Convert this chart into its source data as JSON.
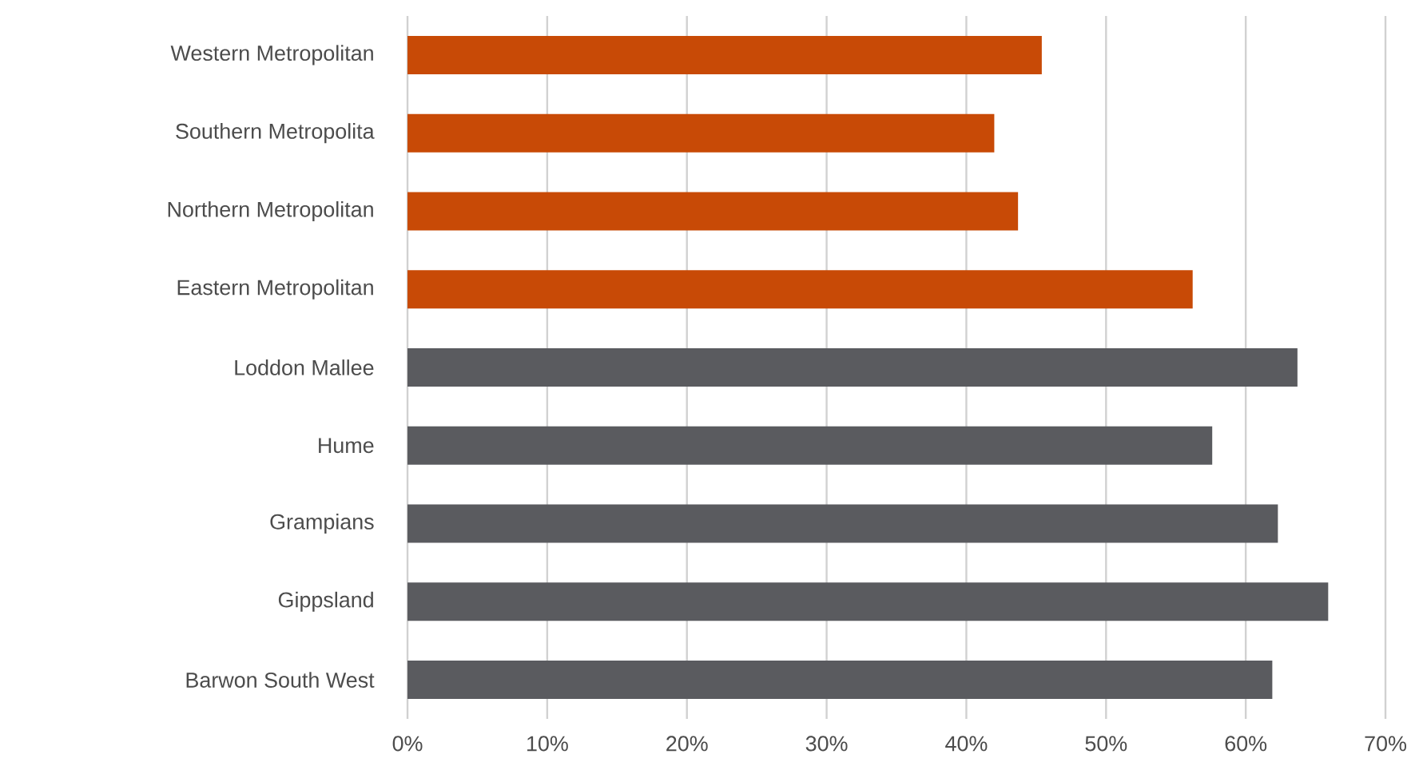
{
  "chart_data": {
    "type": "bar",
    "orientation": "horizontal",
    "categories": [
      "Western Metropolitan",
      "Southern Metropolita",
      "Northern Metropolitan",
      "Eastern Metropolitan",
      "Loddon Mallee",
      "Hume",
      "Grampians",
      "Gippsland",
      "Barwon South West"
    ],
    "values": [
      45.4,
      42.0,
      43.7,
      56.2,
      63.7,
      57.6,
      62.3,
      65.9,
      61.9
    ],
    "colors": [
      "#c84a06",
      "#c84a06",
      "#c84a06",
      "#c84a06",
      "#5a5b5f",
      "#5a5b5f",
      "#5a5b5f",
      "#5a5b5f",
      "#5a5b5f"
    ],
    "xlim": [
      0,
      70
    ],
    "xticks": [
      {
        "value": 0,
        "label": "0%"
      },
      {
        "value": 10,
        "label": "10%"
      },
      {
        "value": 20,
        "label": "20%"
      },
      {
        "value": 30,
        "label": "30%"
      },
      {
        "value": 40,
        "label": "40%"
      },
      {
        "value": 50,
        "label": "50%"
      },
      {
        "value": 60,
        "label": "60%"
      },
      {
        "value": 70,
        "label": "70%"
      }
    ],
    "grid": "x"
  }
}
